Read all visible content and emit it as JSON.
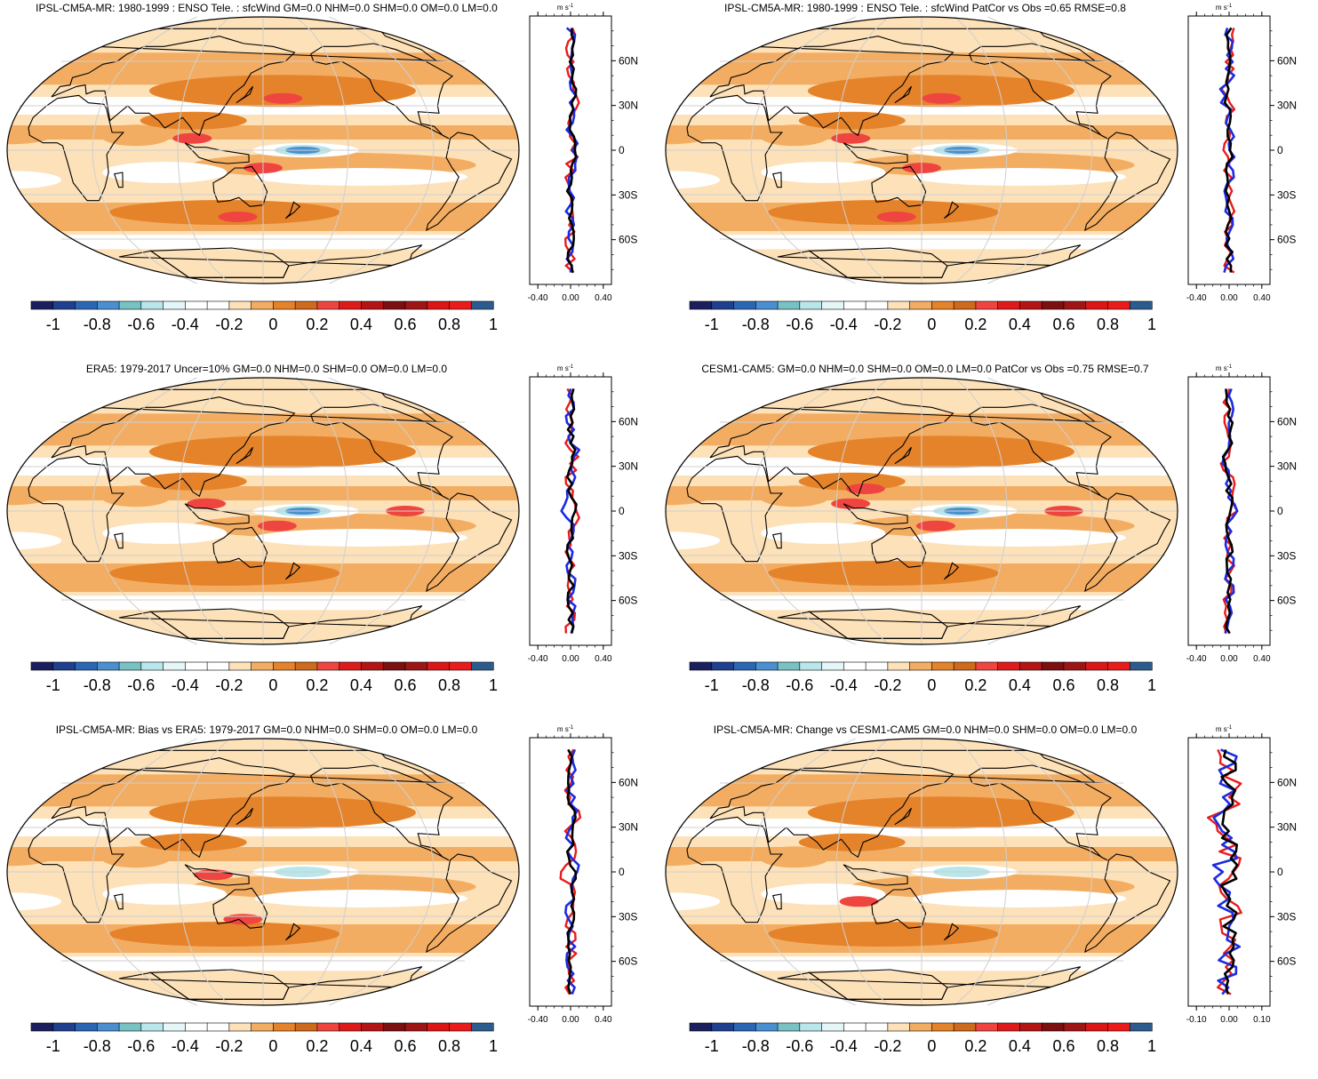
{
  "colorbar": {
    "colors": [
      "#1b1f5e",
      "#1f3f8f",
      "#2b66b5",
      "#4a8fd0",
      "#78c2c4",
      "#b9e6ea",
      "#e4f6f8",
      "#ffffff",
      "#ffffff",
      "#fde1b8",
      "#f3ad62",
      "#e5832b",
      "#cf6a1c",
      "#ef4540",
      "#de1b1b",
      "#b51414",
      "#7c0f0f",
      "#9f1515",
      "#dc1616",
      "#ec1b1b",
      "#2c5c8e"
    ],
    "labels": [
      "-1",
      "-0.8",
      "-0.6",
      "-0.4",
      "-0.2",
      "0",
      "0.2",
      "0.4",
      "0.6",
      "0.8",
      "1"
    ],
    "palette": {
      "land": "#fde1b8",
      "ocean_base": "#fde1b8",
      "mid": "#f3ad62",
      "strong": "#e5832b",
      "red": "#ef4540",
      "blue": "#4a8fd0",
      "cyan": "#b9e6ea"
    }
  },
  "profile": {
    "unit": "m s",
    "unit_exp": "-1",
    "lat_labels": [
      "60N",
      "30N",
      "0",
      "30S",
      "60S"
    ],
    "series_colors": {
      "red": "#e81c1c",
      "blue": "#1c2be0",
      "black": "#000000"
    }
  },
  "panels": [
    {
      "title": "IPSL-CM5A-MR: 1980-1999 : ENSO Tele. : sfcWind GM=0.0 NHM=0.0 SHM=0.0 OM=0.0 LM=0.0",
      "xticks": [
        "-0.40",
        "0.00",
        "0.40"
      ],
      "xrange": [
        -0.5,
        0.5
      ]
    },
    {
      "title": "IPSL-CM5A-MR: 1980-1999 : ENSO Tele. : sfcWind PatCor vs Obs =0.65 RMSE=0.8",
      "xticks": [
        "-0.40",
        "0.00",
        "0.40"
      ],
      "xrange": [
        -0.5,
        0.5
      ]
    },
    {
      "title": "ERA5: 1979-2017 Uncer=10% GM=0.0 NHM=0.0 SHM=0.0 OM=0.0 LM=0.0",
      "xticks": [
        "-0.40",
        "0.00",
        "0.40"
      ],
      "xrange": [
        -0.5,
        0.5
      ]
    },
    {
      "title": "CESM1-CAM5: GM=0.0 NHM=0.0 SHM=0.0 OM=0.0 LM=0.0 PatCor vs Obs =0.75 RMSE=0.7",
      "xticks": [
        "-0.40",
        "0.00",
        "0.40"
      ],
      "xrange": [
        -0.5,
        0.5
      ]
    },
    {
      "title": "IPSL-CM5A-MR: Bias vs ERA5: 1979-2017 GM=0.0 NHM=0.0 SHM=0.0 OM=0.0 LM=0.0",
      "xticks": [
        "-0.40",
        "0.00",
        "0.40"
      ],
      "xrange": [
        -0.5,
        0.5
      ]
    },
    {
      "title": "IPSL-CM5A-MR: Change vs CESM1-CAM5 GM=0.0 NHM=0.0 SHM=0.0 OM=0.0 LM=0.0",
      "xticks": [
        "-0.10",
        "0.00",
        "0.10"
      ],
      "xrange": [
        -0.125,
        0.125
      ]
    }
  ]
}
